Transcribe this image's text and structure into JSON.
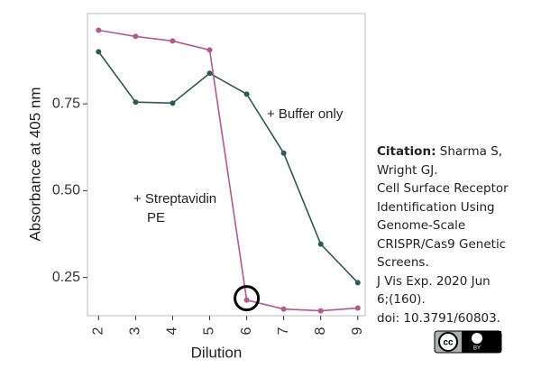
{
  "chart_data": {
    "type": "line",
    "x_label": "Dilution",
    "y_label": "Absorbance at 405 nm",
    "x": [
      2,
      3,
      4,
      5,
      6,
      7,
      8,
      9
    ],
    "xlim": [
      1.7,
      9.2
    ],
    "xticks": [
      2,
      3,
      4,
      5,
      6,
      7,
      8,
      9
    ],
    "ylim": [
      0.14,
      1.01
    ],
    "yticks": [
      0.25,
      0.5,
      0.75
    ],
    "ytick_labels": [
      "0.25",
      "0.50",
      "0.75"
    ],
    "series": [
      {
        "name": "+ Buffer only",
        "color": "#2d5a55",
        "values": [
          0.9,
          0.755,
          0.752,
          0.838,
          0.778,
          0.608,
          0.346,
          0.235
        ]
      },
      {
        "name": "+ Streptavidin PE",
        "color": "#b5588f",
        "values": [
          0.962,
          0.944,
          0.931,
          0.905,
          0.185,
          0.159,
          0.154,
          0.162
        ]
      }
    ],
    "annotations": [
      "+ Buffer only",
      "+ Streptavidin",
      "PE"
    ]
  },
  "citation": {
    "label": "Citation:",
    "lines": [
      "Sharma S,",
      "Wright GJ.",
      "Cell Surface Receptor",
      "Identification Using",
      "Genome-Scale",
      "CRISPR/Cas9 Genetic",
      "Screens.",
      "J Vis Exp. 2020 Jun",
      "6;(160).",
      "doi: 10.3791/60803."
    ]
  },
  "license_badge": "BY"
}
